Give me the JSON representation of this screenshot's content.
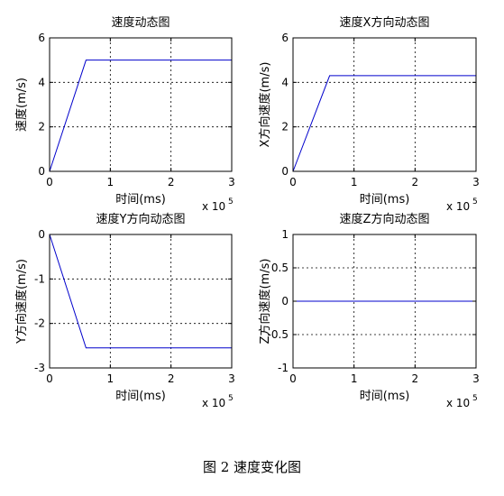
{
  "chart_data": [
    {
      "type": "line",
      "title": "速度动态图",
      "xlabel": "时间(ms)",
      "ylabel": "速度(m/s)",
      "x_exponent_label": "x 10",
      "x_exponent_power": "5",
      "xlim": [
        0,
        3
      ],
      "ylim": [
        0,
        6
      ],
      "xticks": [
        0,
        1,
        2,
        3
      ],
      "yticks": [
        0,
        2,
        4,
        6
      ],
      "xtick_labels": [
        "0",
        "1",
        "2",
        "3"
      ],
      "ytick_labels": [
        "0",
        "2",
        "4",
        "6"
      ],
      "grid": true,
      "line_color": "#0000cc",
      "x": [
        0,
        0.6,
        3
      ],
      "y": [
        0,
        5,
        5
      ]
    },
    {
      "type": "line",
      "title": "速度X方向动态图",
      "xlabel": "时间(ms)",
      "ylabel": "X方向速度(m/s)",
      "x_exponent_label": "x 10",
      "x_exponent_power": "5",
      "xlim": [
        0,
        3
      ],
      "ylim": [
        0,
        6
      ],
      "xticks": [
        0,
        1,
        2,
        3
      ],
      "yticks": [
        0,
        2,
        4,
        6
      ],
      "xtick_labels": [
        "0",
        "1",
        "2",
        "3"
      ],
      "ytick_labels": [
        "0",
        "2",
        "4",
        "6"
      ],
      "grid": true,
      "line_color": "#0000cc",
      "x": [
        0,
        0.6,
        3
      ],
      "y": [
        0,
        4.3,
        4.3
      ]
    },
    {
      "type": "line",
      "title": "速度Y方向动态图",
      "xlabel": "时间(ms)",
      "ylabel": "Y方向速度(m/s)",
      "x_exponent_label": "x 10",
      "x_exponent_power": "5",
      "xlim": [
        0,
        3
      ],
      "ylim": [
        -3,
        0
      ],
      "xticks": [
        0,
        1,
        2,
        3
      ],
      "yticks": [
        -3,
        -2,
        -1,
        0
      ],
      "xtick_labels": [
        "0",
        "1",
        "2",
        "3"
      ],
      "ytick_labels": [
        "-3",
        "-2",
        "-1",
        "0"
      ],
      "grid": true,
      "line_color": "#0000cc",
      "x": [
        0,
        0.6,
        3
      ],
      "y": [
        0,
        -2.55,
        -2.55
      ]
    },
    {
      "type": "line",
      "title": "速度Z方向动态图",
      "xlabel": "时间(ms)",
      "ylabel": "Z方向速度(m/s)",
      "x_exponent_label": "x 10",
      "x_exponent_power": "5",
      "xlim": [
        0,
        3
      ],
      "ylim": [
        -1,
        1
      ],
      "xticks": [
        0,
        1,
        2,
        3
      ],
      "yticks": [
        -1,
        -0.5,
        0,
        0.5,
        1
      ],
      "xtick_labels": [
        "0",
        "1",
        "2",
        "3"
      ],
      "ytick_labels": [
        "-1",
        "-0.5",
        "0",
        "0.5",
        "1"
      ],
      "grid": true,
      "line_color": "#0000cc",
      "x": [
        0,
        3
      ],
      "y": [
        0,
        0
      ]
    }
  ],
  "caption": "图 2  速度变化图"
}
